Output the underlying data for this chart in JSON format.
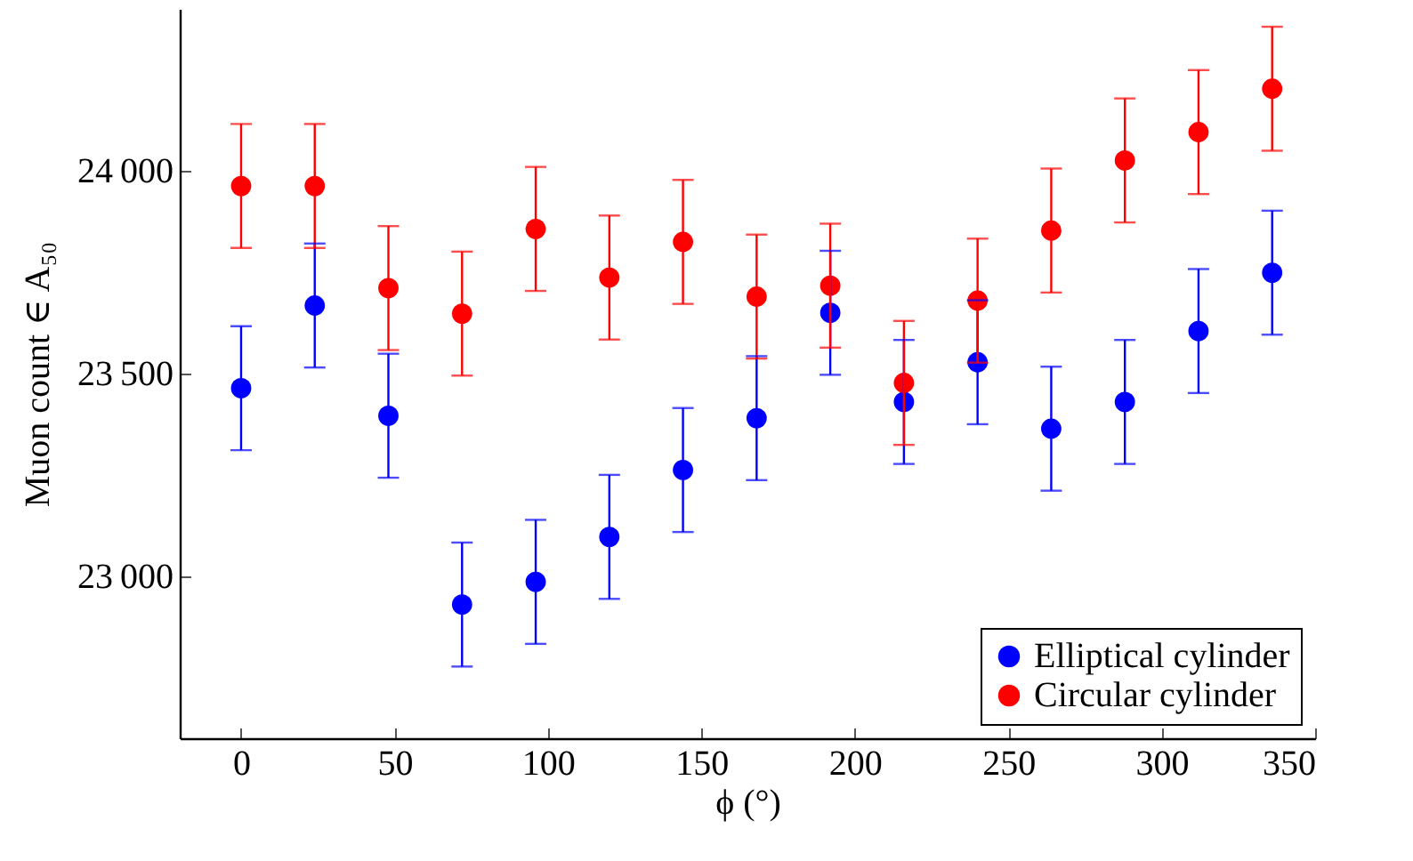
{
  "chart_data": {
    "type": "scatter",
    "xlabel": "ϕ (°)",
    "ylabel": "Muon count ∈ A₅₀",
    "x": [
      0,
      24,
      48,
      72,
      96,
      120,
      144,
      168,
      192,
      216,
      240,
      264,
      288,
      312,
      336
    ],
    "series": [
      {
        "name": "Elliptical cylinder",
        "color": "#0000ff",
        "values": [
          23464,
          23668,
          23396,
          22930,
          22986,
          23097,
          23262,
          23390,
          23650,
          23430,
          23528,
          23364,
          23430,
          23605,
          23749
        ],
        "errors": [
          153,
          153,
          153,
          153,
          153,
          153,
          153,
          153,
          153,
          153,
          153,
          153,
          153,
          153,
          153
        ]
      },
      {
        "name": "Circular cylinder",
        "color": "#ff0000",
        "values": [
          23963,
          23963,
          23711,
          23648,
          23857,
          23737,
          23825,
          23690,
          23717,
          23477,
          23680,
          23853,
          24026,
          24096,
          24203
        ],
        "errors": [
          153,
          153,
          153,
          153,
          153,
          153,
          153,
          153,
          153,
          153,
          153,
          153,
          153,
          153,
          153
        ]
      }
    ],
    "xlim": [
      -20,
      350
    ],
    "xticks": [
      0,
      50,
      100,
      150,
      200,
      250,
      300,
      350
    ],
    "ylim": [
      22600,
      24400
    ],
    "yticks": [
      23000,
      23500,
      24000
    ],
    "grid": false,
    "legend": "bottom right",
    "marker": "circle"
  }
}
